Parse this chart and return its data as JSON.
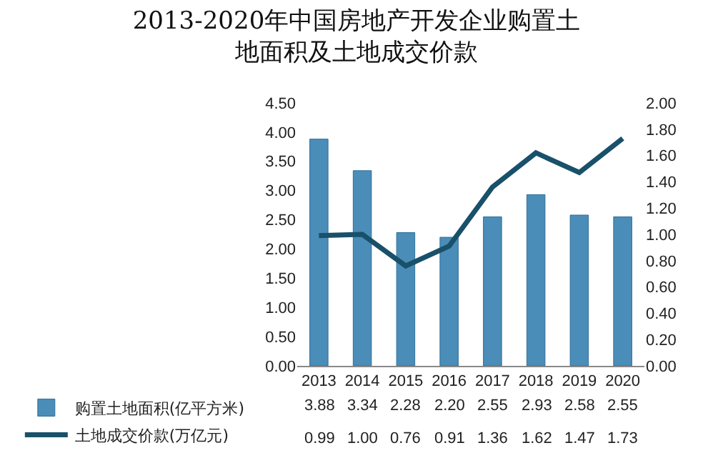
{
  "chart_data": {
    "type": "bar",
    "title": "2013-2020年中国房地产开发企业购置土地面积及土地成交价款",
    "categories": [
      "2013",
      "2014",
      "2015",
      "2016",
      "2017",
      "2018",
      "2019",
      "2020"
    ],
    "series": [
      {
        "name": "购置土地面积(亿平方米)",
        "color": "#4a8db8",
        "values": [
          3.88,
          3.34,
          2.28,
          2.2,
          2.55,
          2.93,
          2.58,
          2.55
        ],
        "value_labels": [
          "3.88",
          "3.34",
          "2.28",
          "2.20",
          "2.55",
          "2.93",
          "2.58",
          "2.55"
        ]
      },
      {
        "name": "土地成交价款(万亿元)",
        "type": "line",
        "axis": "y2",
        "color": "#19506a",
        "values": [
          0.99,
          1,
          0.76,
          0.91,
          1.36,
          1.62,
          1.47,
          1.73
        ],
        "value_labels": [
          "0.99",
          "1.00",
          "0.76",
          "0.91",
          "1.36",
          "1.62",
          "1.47",
          "1.73"
        ]
      }
    ],
    "ylim": [
      0,
      4.5
    ],
    "yticks": [
      {
        "value": 0,
        "label": "0.00"
      },
      {
        "value": 0.5,
        "label": "0.50"
      },
      {
        "value": 1,
        "label": "1.00"
      },
      {
        "value": 1.5,
        "label": "1.50"
      },
      {
        "value": 2,
        "label": "2.00"
      },
      {
        "value": 2.5,
        "label": "2.50"
      },
      {
        "value": 3,
        "label": "3.00"
      },
      {
        "value": 3.5,
        "label": "3.50"
      },
      {
        "value": 4,
        "label": "4.00"
      },
      {
        "value": 4.5,
        "label": "4.50"
      }
    ],
    "y2lim": [
      0,
      2
    ],
    "y2ticks": [
      {
        "value": 0,
        "label": "0.00"
      },
      {
        "value": 0.2,
        "label": "0.20"
      },
      {
        "value": 0.4,
        "label": "0.40"
      },
      {
        "value": 0.6,
        "label": "0.60"
      },
      {
        "value": 0.8,
        "label": "0.80"
      },
      {
        "value": 1,
        "label": "1.00"
      },
      {
        "value": 1.2,
        "label": "1.20"
      },
      {
        "value": 1.4,
        "label": "1.40"
      },
      {
        "value": 1.6,
        "label": "1.60"
      },
      {
        "value": 1.8,
        "label": "1.80"
      },
      {
        "value": 2,
        "label": "2.00"
      }
    ],
    "legend": "bottom left",
    "marker": "none",
    "line_style": "solid"
  }
}
